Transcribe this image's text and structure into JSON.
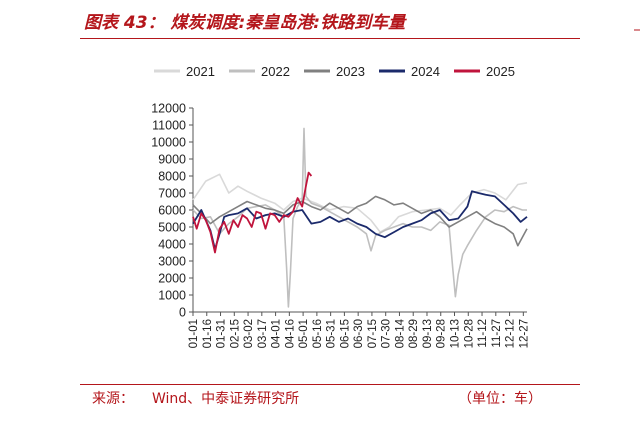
{
  "title": "图表 43：  煤炭调度:秦皇岛港:铁路到车量",
  "footer": {
    "source_label": "来源：",
    "source_text": "Wind、中泰证券研究所",
    "unit": "（单位：车）"
  },
  "chart_data": {
    "type": "line",
    "title": "煤炭调度:秦皇岛港:铁路到车量",
    "xlabel": "",
    "ylabel": "",
    "unit": "车",
    "ylim": [
      0,
      12000
    ],
    "yticks": [
      0,
      1000,
      2000,
      3000,
      4000,
      5000,
      6000,
      7000,
      8000,
      9000,
      10000,
      11000,
      12000
    ],
    "x_ticks": [
      "01-01",
      "01-16",
      "01-31",
      "02-15",
      "03-02",
      "03-17",
      "04-01",
      "04-16",
      "05-01",
      "05-16",
      "05-31",
      "06-15",
      "06-30",
      "07-15",
      "07-30",
      "08-14",
      "08-29",
      "09-13",
      "09-28",
      "10-13",
      "10-28",
      "11-12",
      "11-27",
      "12-12",
      "12-27"
    ],
    "x_tick_days": [
      1,
      16,
      31,
      46,
      61,
      76,
      91,
      106,
      121,
      136,
      151,
      166,
      181,
      196,
      211,
      226,
      241,
      256,
      271,
      286,
      301,
      316,
      331,
      346,
      361
    ],
    "xlim_day": [
      1,
      365
    ],
    "grid": false,
    "legend_position": "top",
    "series": [
      {
        "name": "2021",
        "color": "#d9d9d9",
        "width": 1.6,
        "points": [
          [
            1,
            6600
          ],
          [
            15,
            7700
          ],
          [
            30,
            8100
          ],
          [
            40,
            7000
          ],
          [
            50,
            7400
          ],
          [
            60,
            7100
          ],
          [
            75,
            6700
          ],
          [
            90,
            6400
          ],
          [
            100,
            6000
          ],
          [
            110,
            6500
          ],
          [
            120,
            6700
          ],
          [
            135,
            6400
          ],
          [
            150,
            6000
          ],
          [
            165,
            6200
          ],
          [
            180,
            6100
          ],
          [
            195,
            5400
          ],
          [
            205,
            4700
          ],
          [
            215,
            5000
          ],
          [
            225,
            5600
          ],
          [
            240,
            5900
          ],
          [
            255,
            6000
          ],
          [
            270,
            6100
          ],
          [
            282,
            5700
          ],
          [
            292,
            6300
          ],
          [
            305,
            7000
          ],
          [
            318,
            7200
          ],
          [
            330,
            7000
          ],
          [
            342,
            6600
          ],
          [
            355,
            7500
          ],
          [
            365,
            7600
          ]
        ]
      },
      {
        "name": "2022",
        "color": "#bfbfbf",
        "width": 1.6,
        "points": [
          [
            1,
            6000
          ],
          [
            10,
            5500
          ],
          [
            20,
            5600
          ],
          [
            30,
            4600
          ],
          [
            40,
            5200
          ],
          [
            50,
            5600
          ],
          [
            60,
            6100
          ],
          [
            70,
            6200
          ],
          [
            80,
            6300
          ],
          [
            90,
            6000
          ],
          [
            100,
            5600
          ],
          [
            103,
            2600
          ],
          [
            105,
            300
          ],
          [
            107,
            2200
          ],
          [
            110,
            5500
          ],
          [
            115,
            6200
          ],
          [
            120,
            6600
          ],
          [
            122,
            10800
          ],
          [
            124,
            6800
          ],
          [
            130,
            6400
          ],
          [
            140,
            6200
          ],
          [
            150,
            5900
          ],
          [
            160,
            5600
          ],
          [
            170,
            5300
          ],
          [
            180,
            5000
          ],
          [
            190,
            4600
          ],
          [
            195,
            3600
          ],
          [
            200,
            4500
          ],
          [
            210,
            4800
          ],
          [
            220,
            5000
          ],
          [
            230,
            5200
          ],
          [
            240,
            5000
          ],
          [
            250,
            5000
          ],
          [
            260,
            4800
          ],
          [
            270,
            5300
          ],
          [
            280,
            5100
          ],
          [
            284,
            2600
          ],
          [
            287,
            900
          ],
          [
            290,
            2200
          ],
          [
            295,
            3400
          ],
          [
            300,
            3900
          ],
          [
            310,
            4800
          ],
          [
            320,
            5600
          ],
          [
            330,
            6000
          ],
          [
            340,
            5900
          ],
          [
            350,
            6200
          ],
          [
            360,
            6000
          ],
          [
            365,
            6000
          ]
        ]
      },
      {
        "name": "2023",
        "color": "#808080",
        "width": 1.6,
        "points": [
          [
            1,
            6300
          ],
          [
            10,
            5800
          ],
          [
            20,
            5200
          ],
          [
            30,
            5600
          ],
          [
            40,
            5900
          ],
          [
            50,
            6200
          ],
          [
            60,
            6500
          ],
          [
            70,
            6300
          ],
          [
            80,
            6100
          ],
          [
            90,
            6000
          ],
          [
            100,
            5800
          ],
          [
            110,
            6300
          ],
          [
            120,
            6500
          ],
          [
            130,
            6200
          ],
          [
            140,
            6000
          ],
          [
            150,
            6400
          ],
          [
            160,
            6100
          ],
          [
            170,
            5800
          ],
          [
            180,
            6200
          ],
          [
            190,
            6400
          ],
          [
            200,
            6800
          ],
          [
            210,
            6600
          ],
          [
            220,
            6300
          ],
          [
            230,
            6400
          ],
          [
            240,
            6100
          ],
          [
            250,
            5800
          ],
          [
            260,
            6000
          ],
          [
            270,
            5600
          ],
          [
            280,
            5000
          ],
          [
            290,
            5300
          ],
          [
            300,
            5600
          ],
          [
            310,
            5900
          ],
          [
            320,
            5500
          ],
          [
            330,
            5200
          ],
          [
            340,
            5000
          ],
          [
            350,
            4600
          ],
          [
            355,
            3900
          ],
          [
            360,
            4400
          ],
          [
            365,
            4900
          ]
        ]
      },
      {
        "name": "2024",
        "color": "#1b2a6b",
        "width": 1.8,
        "points": [
          [
            1,
            5200
          ],
          [
            10,
            6000
          ],
          [
            15,
            5400
          ],
          [
            20,
            4800
          ],
          [
            25,
            3700
          ],
          [
            30,
            4600
          ],
          [
            35,
            5600
          ],
          [
            40,
            5700
          ],
          [
            50,
            5800
          ],
          [
            60,
            6100
          ],
          [
            70,
            5500
          ],
          [
            80,
            5700
          ],
          [
            90,
            5800
          ],
          [
            100,
            5600
          ],
          [
            110,
            5900
          ],
          [
            120,
            6000
          ],
          [
            130,
            5200
          ],
          [
            140,
            5300
          ],
          [
            150,
            5600
          ],
          [
            160,
            5300
          ],
          [
            170,
            5500
          ],
          [
            180,
            5200
          ],
          [
            190,
            5000
          ],
          [
            200,
            4600
          ],
          [
            210,
            4400
          ],
          [
            220,
            4700
          ],
          [
            230,
            5000
          ],
          [
            240,
            5200
          ],
          [
            250,
            5400
          ],
          [
            260,
            5800
          ],
          [
            270,
            6000
          ],
          [
            280,
            5400
          ],
          [
            290,
            5500
          ],
          [
            300,
            6200
          ],
          [
            305,
            7100
          ],
          [
            312,
            7000
          ],
          [
            320,
            6900
          ],
          [
            330,
            6800
          ],
          [
            340,
            6300
          ],
          [
            350,
            5800
          ],
          [
            358,
            5300
          ],
          [
            365,
            5600
          ]
        ]
      },
      {
        "name": "2025",
        "color": "#c0143c",
        "width": 1.8,
        "points": [
          [
            1,
            5600
          ],
          [
            5,
            4900
          ],
          [
            10,
            5800
          ],
          [
            15,
            5400
          ],
          [
            20,
            4700
          ],
          [
            25,
            3500
          ],
          [
            30,
            4900
          ],
          [
            35,
            5300
          ],
          [
            40,
            4600
          ],
          [
            45,
            5400
          ],
          [
            50,
            5000
          ],
          [
            55,
            5700
          ],
          [
            60,
            5500
          ],
          [
            65,
            5000
          ],
          [
            70,
            5900
          ],
          [
            75,
            5800
          ],
          [
            80,
            4900
          ],
          [
            85,
            5800
          ],
          [
            90,
            5700
          ],
          [
            95,
            5300
          ],
          [
            100,
            5700
          ],
          [
            105,
            5600
          ],
          [
            110,
            5900
          ],
          [
            115,
            6700
          ],
          [
            120,
            6200
          ],
          [
            124,
            7400
          ],
          [
            127,
            8200
          ],
          [
            130,
            8000
          ]
        ]
      }
    ]
  }
}
